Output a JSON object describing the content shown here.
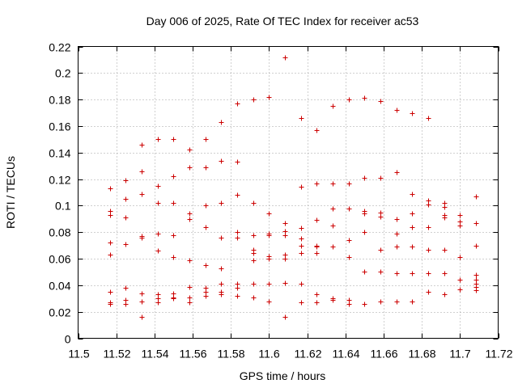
{
  "chart_data": {
    "type": "scatter",
    "title": "Day 006 of 2025, Rate Of TEC Index for receiver ac53",
    "xlabel": "GPS time / hours",
    "ylabel": "ROTI / TECUs",
    "xlim": [
      11.5,
      11.72
    ],
    "ylim": [
      0,
      0.22
    ],
    "x_ticks": [
      11.5,
      11.52,
      11.54,
      11.56,
      11.58,
      11.6,
      11.62,
      11.64,
      11.66,
      11.68,
      11.7,
      11.72
    ],
    "x_tick_labels": [
      "11.5",
      "11.52",
      "11.54",
      "11.56",
      "11.58",
      "11.6",
      "11.62",
      "11.64",
      "11.66",
      "11.68",
      "11.7",
      "11.72"
    ],
    "y_ticks": [
      0,
      0.02,
      0.04,
      0.06,
      0.08,
      0.1,
      0.12,
      0.14,
      0.16,
      0.18,
      0.2,
      0.22
    ],
    "y_tick_labels": [
      "0",
      "0.02",
      "0.04",
      "0.06",
      "0.08",
      "0.1",
      "0.12",
      "0.14",
      "0.16",
      "0.18",
      "0.2",
      "0.22"
    ],
    "grid": true,
    "marker": "+",
    "color": "#cc0000",
    "series": [
      {
        "name": "ROTI",
        "points": [
          [
            11.5167,
            0.113
          ],
          [
            11.5167,
            0.096
          ],
          [
            11.5167,
            0.093
          ],
          [
            11.5167,
            0.072
          ],
          [
            11.5167,
            0.063
          ],
          [
            11.5167,
            0.035
          ],
          [
            11.5167,
            0.027
          ],
          [
            11.5167,
            0.026
          ],
          [
            11.525,
            0.119
          ],
          [
            11.525,
            0.105
          ],
          [
            11.525,
            0.091
          ],
          [
            11.525,
            0.071
          ],
          [
            11.525,
            0.038
          ],
          [
            11.525,
            0.029
          ],
          [
            11.525,
            0.026
          ],
          [
            11.5333,
            0.146
          ],
          [
            11.5333,
            0.126
          ],
          [
            11.5333,
            0.109
          ],
          [
            11.5333,
            0.077
          ],
          [
            11.5333,
            0.076
          ],
          [
            11.5333,
            0.034
          ],
          [
            11.5333,
            0.028
          ],
          [
            11.5333,
            0.016
          ],
          [
            11.5417,
            0.15
          ],
          [
            11.5417,
            0.115
          ],
          [
            11.5417,
            0.102
          ],
          [
            11.5417,
            0.079
          ],
          [
            11.5417,
            0.066
          ],
          [
            11.5417,
            0.033
          ],
          [
            11.5417,
            0.03
          ],
          [
            11.5417,
            0.027
          ],
          [
            11.55,
            0.15
          ],
          [
            11.55,
            0.122
          ],
          [
            11.55,
            0.102
          ],
          [
            11.55,
            0.078
          ],
          [
            11.55,
            0.061
          ],
          [
            11.55,
            0.034
          ],
          [
            11.55,
            0.031
          ],
          [
            11.55,
            0.03
          ],
          [
            11.5583,
            0.142
          ],
          [
            11.5583,
            0.129
          ],
          [
            11.5583,
            0.094
          ],
          [
            11.5583,
            0.09
          ],
          [
            11.5583,
            0.059
          ],
          [
            11.5583,
            0.039
          ],
          [
            11.5583,
            0.031
          ],
          [
            11.5583,
            0.027
          ],
          [
            11.5667,
            0.15
          ],
          [
            11.5667,
            0.129
          ],
          [
            11.5667,
            0.1
          ],
          [
            11.5667,
            0.084
          ],
          [
            11.5667,
            0.055
          ],
          [
            11.5667,
            0.038
          ],
          [
            11.5667,
            0.035
          ],
          [
            11.5667,
            0.032
          ],
          [
            11.575,
            0.163
          ],
          [
            11.575,
            0.134
          ],
          [
            11.575,
            0.102
          ],
          [
            11.575,
            0.076
          ],
          [
            11.575,
            0.053
          ],
          [
            11.575,
            0.041
          ],
          [
            11.575,
            0.035
          ],
          [
            11.575,
            0.033
          ],
          [
            11.5833,
            0.177
          ],
          [
            11.5833,
            0.133
          ],
          [
            11.5833,
            0.108
          ],
          [
            11.5833,
            0.08
          ],
          [
            11.5833,
            0.076
          ],
          [
            11.5833,
            0.041
          ],
          [
            11.5833,
            0.038
          ],
          [
            11.5833,
            0.032
          ],
          [
            11.5917,
            0.18
          ],
          [
            11.5917,
            0.102
          ],
          [
            11.5917,
            0.078
          ],
          [
            11.5917,
            0.067
          ],
          [
            11.5917,
            0.064
          ],
          [
            11.5917,
            0.059
          ],
          [
            11.5917,
            0.041
          ],
          [
            11.5917,
            0.031
          ],
          [
            11.6,
            0.182
          ],
          [
            11.6,
            0.094
          ],
          [
            11.6,
            0.079
          ],
          [
            11.6,
            0.078
          ],
          [
            11.6,
            0.062
          ],
          [
            11.6,
            0.06
          ],
          [
            11.6,
            0.041
          ],
          [
            11.6,
            0.028
          ],
          [
            11.6083,
            0.212
          ],
          [
            11.6083,
            0.087
          ],
          [
            11.6083,
            0.081
          ],
          [
            11.6083,
            0.078
          ],
          [
            11.6083,
            0.063
          ],
          [
            11.6083,
            0.06
          ],
          [
            11.6083,
            0.042
          ],
          [
            11.6083,
            0.016
          ],
          [
            11.6167,
            0.166
          ],
          [
            11.6167,
            0.114
          ],
          [
            11.6167,
            0.083
          ],
          [
            11.6167,
            0.075
          ],
          [
            11.6167,
            0.07
          ],
          [
            11.6167,
            0.064
          ],
          [
            11.6167,
            0.041
          ],
          [
            11.6167,
            0.027
          ],
          [
            11.625,
            0.157
          ],
          [
            11.625,
            0.117
          ],
          [
            11.625,
            0.089
          ],
          [
            11.625,
            0.07
          ],
          [
            11.625,
            0.069
          ],
          [
            11.625,
            0.064
          ],
          [
            11.625,
            0.033
          ],
          [
            11.625,
            0.027
          ],
          [
            11.6333,
            0.175
          ],
          [
            11.6333,
            0.117
          ],
          [
            11.6333,
            0.098
          ],
          [
            11.6333,
            0.085
          ],
          [
            11.6333,
            0.069
          ],
          [
            11.6333,
            0.03
          ],
          [
            11.6333,
            0.029
          ],
          [
            11.6417,
            0.18
          ],
          [
            11.6417,
            0.117
          ],
          [
            11.6417,
            0.098
          ],
          [
            11.6417,
            0.074
          ],
          [
            11.6417,
            0.061
          ],
          [
            11.6417,
            0.029
          ],
          [
            11.6417,
            0.026
          ],
          [
            11.65,
            0.181
          ],
          [
            11.65,
            0.121
          ],
          [
            11.65,
            0.096
          ],
          [
            11.65,
            0.094
          ],
          [
            11.65,
            0.08
          ],
          [
            11.65,
            0.05
          ],
          [
            11.65,
            0.026
          ],
          [
            11.6583,
            0.179
          ],
          [
            11.6583,
            0.121
          ],
          [
            11.6583,
            0.095
          ],
          [
            11.6583,
            0.092
          ],
          [
            11.6583,
            0.067
          ],
          [
            11.6583,
            0.05
          ],
          [
            11.6583,
            0.028
          ],
          [
            11.6667,
            0.172
          ],
          [
            11.6667,
            0.125
          ],
          [
            11.6667,
            0.09
          ],
          [
            11.6667,
            0.079
          ],
          [
            11.6667,
            0.069
          ],
          [
            11.6667,
            0.049
          ],
          [
            11.6667,
            0.028
          ],
          [
            11.675,
            0.17
          ],
          [
            11.675,
            0.109
          ],
          [
            11.675,
            0.094
          ],
          [
            11.675,
            0.084
          ],
          [
            11.675,
            0.069
          ],
          [
            11.675,
            0.049
          ],
          [
            11.675,
            0.028
          ],
          [
            11.6833,
            0.166
          ],
          [
            11.6833,
            0.104
          ],
          [
            11.6833,
            0.101
          ],
          [
            11.6833,
            0.084
          ],
          [
            11.6833,
            0.067
          ],
          [
            11.6833,
            0.049
          ],
          [
            11.6833,
            0.035
          ],
          [
            11.6917,
            0.102
          ],
          [
            11.6917,
            0.099
          ],
          [
            11.6917,
            0.093
          ],
          [
            11.6917,
            0.091
          ],
          [
            11.6917,
            0.067
          ],
          [
            11.6917,
            0.049
          ],
          [
            11.6917,
            0.033
          ],
          [
            11.7,
            0.093
          ],
          [
            11.7,
            0.088
          ],
          [
            11.7,
            0.085
          ],
          [
            11.7,
            0.061
          ],
          [
            11.7,
            0.044
          ],
          [
            11.7,
            0.037
          ],
          [
            11.7083,
            0.107
          ],
          [
            11.7083,
            0.087
          ],
          [
            11.7083,
            0.07
          ],
          [
            11.7083,
            0.048
          ],
          [
            11.7083,
            0.044
          ],
          [
            11.7083,
            0.041
          ],
          [
            11.7083,
            0.039
          ],
          [
            11.7083,
            0.036
          ]
        ]
      }
    ]
  }
}
